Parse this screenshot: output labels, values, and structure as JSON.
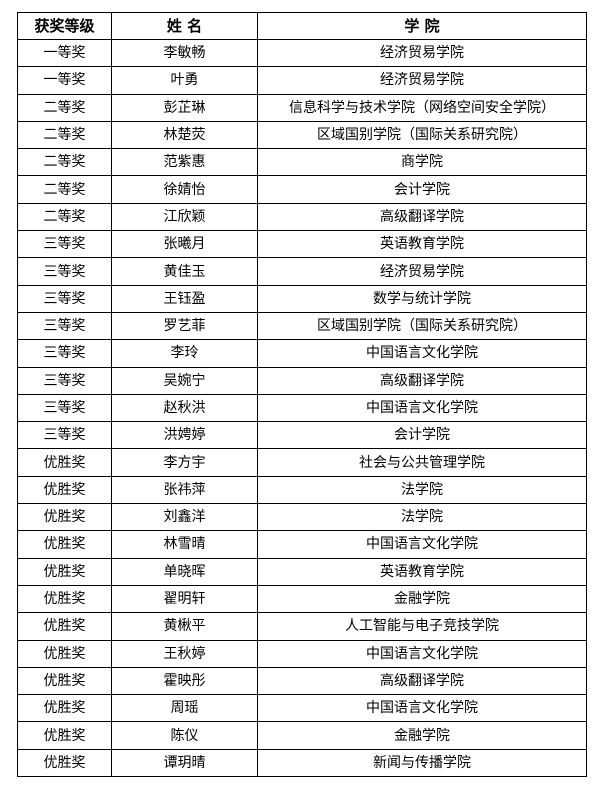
{
  "table": {
    "headers": [
      "获奖等级",
      "姓 名",
      "学 院"
    ],
    "rows": [
      [
        "一等奖",
        "李敏畅",
        "经济贸易学院"
      ],
      [
        "一等奖",
        "叶勇",
        "经济贸易学院"
      ],
      [
        "二等奖",
        "彭芷琳",
        "信息科学与技术学院（网络空间安全学院）"
      ],
      [
        "二等奖",
        "林楚荧",
        "区域国别学院（国际关系研究院）"
      ],
      [
        "二等奖",
        "范紫惠",
        "商学院"
      ],
      [
        "二等奖",
        "徐婧怡",
        "会计学院"
      ],
      [
        "二等奖",
        "江欣颖",
        "高级翻译学院"
      ],
      [
        "三等奖",
        "张曦月",
        "英语教育学院"
      ],
      [
        "三等奖",
        "黄佳玉",
        "经济贸易学院"
      ],
      [
        "三等奖",
        "王钰盈",
        "数学与统计学院"
      ],
      [
        "三等奖",
        "罗艺菲",
        "区域国别学院（国际关系研究院）"
      ],
      [
        "三等奖",
        "李玲",
        "中国语言文化学院"
      ],
      [
        "三等奖",
        "吴婉宁",
        "高级翻译学院"
      ],
      [
        "三等奖",
        "赵秋洪",
        "中国语言文化学院"
      ],
      [
        "三等奖",
        "洪娉婷",
        "会计学院"
      ],
      [
        "优胜奖",
        "李方宇",
        "社会与公共管理学院"
      ],
      [
        "优胜奖",
        "张祎萍",
        "法学院"
      ],
      [
        "优胜奖",
        "刘鑫洋",
        "法学院"
      ],
      [
        "优胜奖",
        "林雪晴",
        "中国语言文化学院"
      ],
      [
        "优胜奖",
        "单晓晖",
        "英语教育学院"
      ],
      [
        "优胜奖",
        "翟明轩",
        "金融学院"
      ],
      [
        "优胜奖",
        "黄楸平",
        "人工智能与电子竞技学院"
      ],
      [
        "优胜奖",
        "王秋婷",
        "中国语言文化学院"
      ],
      [
        "优胜奖",
        "霍映彤",
        "高级翻译学院"
      ],
      [
        "优胜奖",
        "周瑶",
        "中国语言文化学院"
      ],
      [
        "优胜奖",
        "陈仪",
        "金融学院"
      ],
      [
        "优胜奖",
        "谭玥晴",
        "新闻与传播学院"
      ]
    ]
  }
}
